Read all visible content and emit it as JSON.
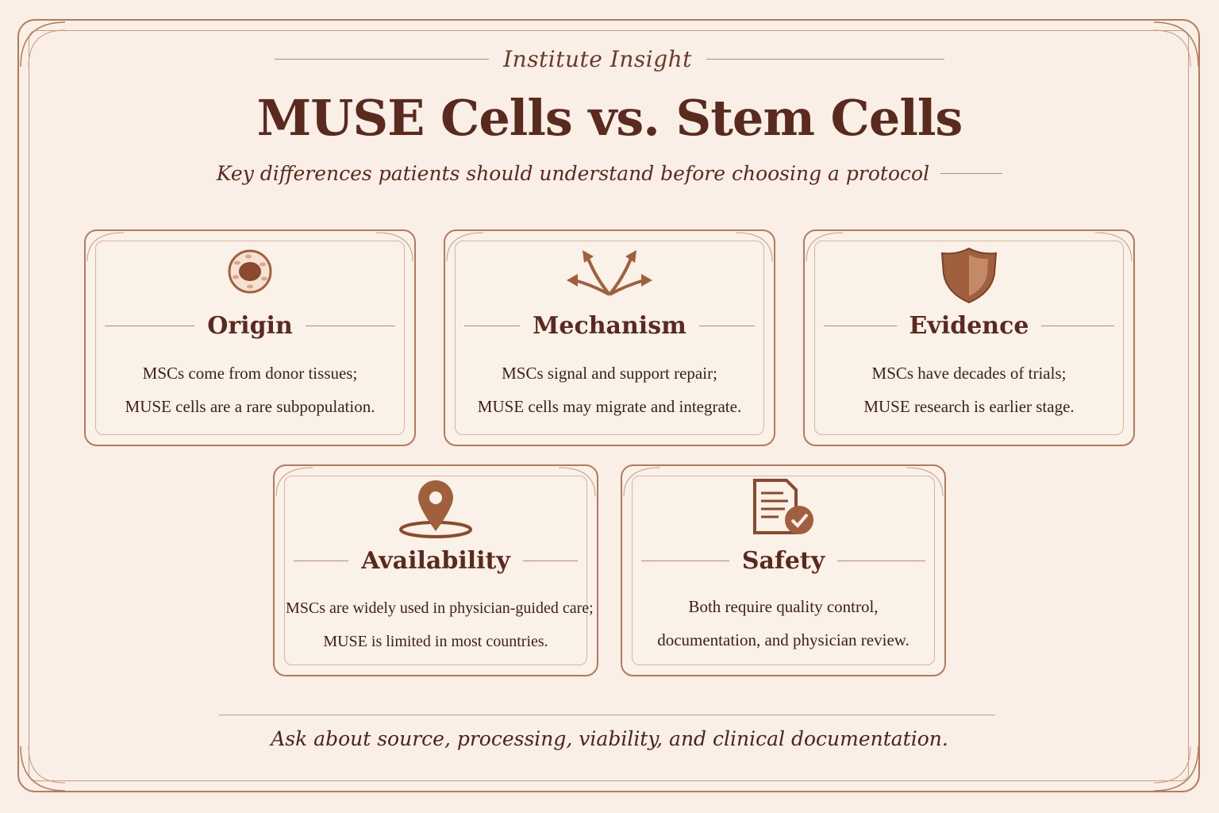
{
  "header": {
    "eyebrow": "Institute Insight",
    "title": "MUSE Cells vs. Stem Cells",
    "subtitle": "Key differences patients should understand before choosing a protocol"
  },
  "cards": [
    {
      "heading": "Origin",
      "icon": "cell-icon",
      "line1": "MSCs come from donor tissues;",
      "line2": "MUSE cells are a rare subpopulation."
    },
    {
      "heading": "Mechanism",
      "icon": "arrows-icon",
      "line1": "MSCs signal and support repair;",
      "line2": "MUSE cells may migrate and integrate."
    },
    {
      "heading": "Evidence",
      "icon": "shield-icon",
      "line1": "MSCs have decades of trials;",
      "line2": "MUSE research is earlier stage."
    },
    {
      "heading": "Availability",
      "icon": "location-pin-icon",
      "line1": "MSCs are widely used in physician-guided care;",
      "line2": "MUSE is limited in most countries."
    },
    {
      "heading": "Safety",
      "icon": "document-check-icon",
      "line1": "Both require quality control,",
      "line2": "documentation, and physician review."
    }
  ],
  "footer": {
    "text": "Ask about source, processing, viability, and clinical documentation."
  },
  "colors": {
    "background": "#f9efe6",
    "accent": "#b57a5c",
    "text": "#5a2a1e",
    "icon": "#a0603e"
  }
}
